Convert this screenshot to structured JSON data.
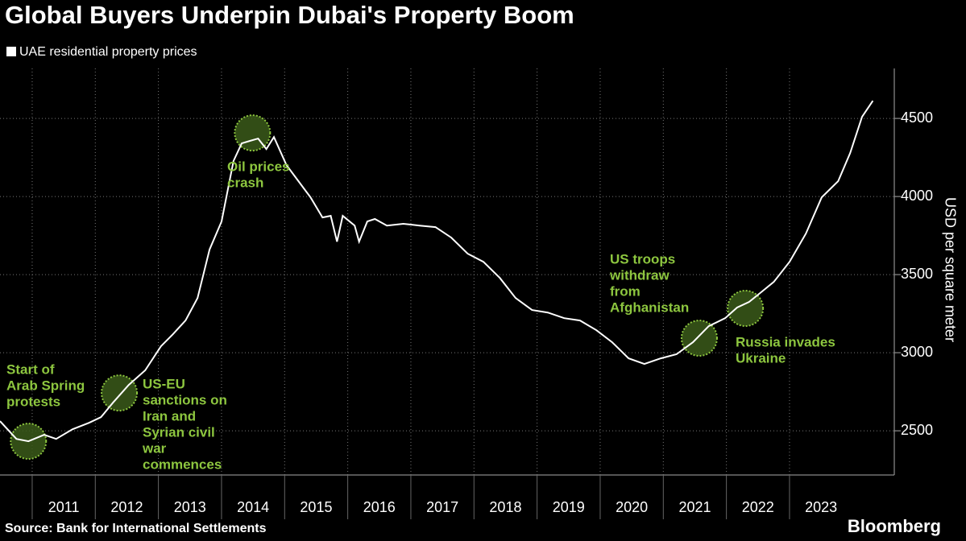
{
  "chart_data": {
    "type": "line",
    "title": "Global Buyers Underpin Dubai's Property Boom",
    "y_label": "USD per square meter",
    "source": "Source: Bank for International Settlements",
    "brand": "Bloomberg",
    "series": [
      {
        "name": "UAE residential property prices",
        "color": "#ffffff",
        "x": [
          2010.49,
          2010.75,
          2010.94,
          2011.19,
          2011.38,
          2011.64,
          2011.9,
          2012.09,
          2012.28,
          2012.53,
          2012.79,
          2013.04,
          2013.23,
          2013.43,
          2013.62,
          2013.81,
          2014.0,
          2014.19,
          2014.32,
          2014.45,
          2014.58,
          2014.71,
          2014.83,
          2015.03,
          2015.22,
          2015.41,
          2015.6,
          2015.73,
          2015.83,
          2015.92,
          2016.11,
          2016.18,
          2016.31,
          2016.43,
          2016.62,
          2016.88,
          2017.14,
          2017.39,
          2017.64,
          2017.9,
          2018.15,
          2018.41,
          2018.66,
          2018.92,
          2019.17,
          2019.43,
          2019.68,
          2019.94,
          2020.19,
          2020.45,
          2020.7,
          2020.96,
          2021.21,
          2021.47,
          2021.72,
          2021.98,
          2022.17,
          2022.36,
          2022.55,
          2022.75,
          2023.0,
          2023.26,
          2023.51,
          2023.77,
          2023.96,
          2024.15,
          2024.32
        ],
        "values": [
          2562,
          2448,
          2433,
          2474,
          2448,
          2510,
          2551,
          2587,
          2680,
          2794,
          2887,
          3041,
          3118,
          3206,
          3350,
          3660,
          3840,
          4227,
          4340,
          4356,
          4371,
          4304,
          4381,
          4201,
          4098,
          3995,
          3866,
          3876,
          3711,
          3876,
          3814,
          3711,
          3840,
          3856,
          3814,
          3825,
          3814,
          3804,
          3737,
          3634,
          3582,
          3479,
          3350,
          3273,
          3257,
          3221,
          3206,
          3144,
          3067,
          2964,
          2928,
          2964,
          2990,
          3067,
          3170,
          3221,
          3289,
          3325,
          3387,
          3453,
          3582,
          3763,
          3995,
          4098,
          4278,
          4510,
          4613
        ]
      }
    ],
    "xlim": [
      2010.49,
      2024.66
    ],
    "xticks": [
      {
        "value": 2011,
        "label": "2011"
      },
      {
        "value": 2012,
        "label": "2012"
      },
      {
        "value": 2013,
        "label": "2013"
      },
      {
        "value": 2014,
        "label": "2014"
      },
      {
        "value": 2015,
        "label": "2015"
      },
      {
        "value": 2016,
        "label": "2016"
      },
      {
        "value": 2017,
        "label": "2017"
      },
      {
        "value": 2018,
        "label": "2018"
      },
      {
        "value": 2019,
        "label": "2019"
      },
      {
        "value": 2020,
        "label": "2020"
      },
      {
        "value": 2021,
        "label": "2021"
      },
      {
        "value": 2022,
        "label": "2022"
      },
      {
        "value": 2023,
        "label": "2023"
      }
    ],
    "ylim": [
      2217,
      4820
    ],
    "yticks": [
      2500,
      3000,
      3500,
      4000,
      4500
    ],
    "grid": true,
    "annotations": [
      {
        "x": 2010.94,
        "y": 2433,
        "lines": [
          "Start of",
          "Arab Spring",
          "protests"
        ],
        "color": "#8dc63f"
      },
      {
        "x": 2012.38,
        "y": 2742,
        "lines": [
          "US-EU",
          "sanctions on",
          "Iran and",
          "Syrian civil",
          "war",
          "commences"
        ],
        "color": "#8dc63f"
      },
      {
        "x": 2014.49,
        "y": 4407,
        "lines": [
          "Oil prices",
          "crash"
        ],
        "color": "#8dc63f"
      },
      {
        "x": 2021.57,
        "y": 3093,
        "lines": [
          "US troops",
          "withdraw",
          "from",
          "Afghanistan"
        ],
        "color": "#8dc63f"
      },
      {
        "x": 2022.3,
        "y": 3284,
        "lines": [
          "Russia invades",
          "Ukraine"
        ],
        "color": "#8dc63f"
      }
    ]
  }
}
